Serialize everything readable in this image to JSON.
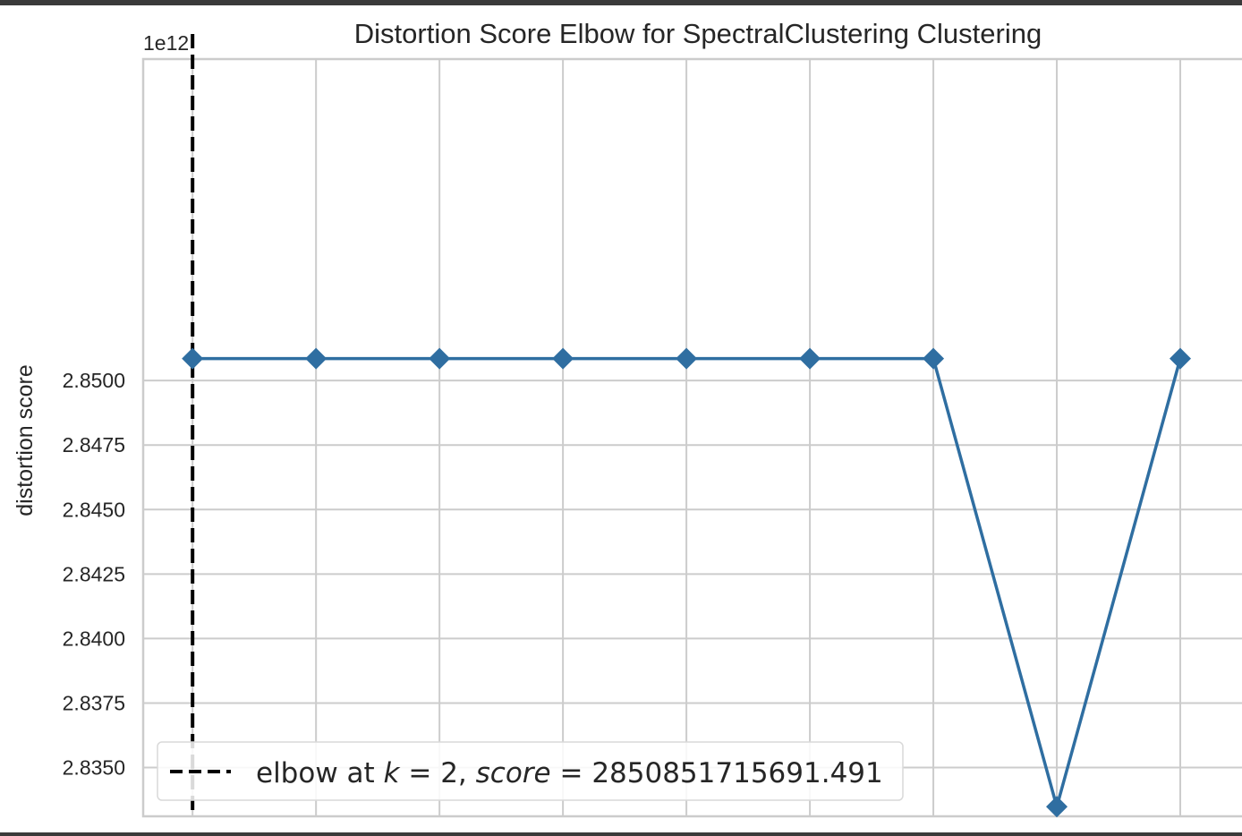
{
  "chart_data": {
    "type": "line",
    "title": "Distortion Score Elbow for SpectralClustering Clustering",
    "xlabel": "",
    "ylabel": "distortion score",
    "y_offset_label": "1e12",
    "x": [
      2,
      3,
      4,
      5,
      6,
      7,
      8,
      9,
      10
    ],
    "series": [
      {
        "values": [
          2.850851715691491,
          2.850851715691491,
          2.850851715691491,
          2.850851715691491,
          2.850851715691491,
          2.850851715691491,
          2.850851715691491,
          2.833483,
          2.850851715691491
        ],
        "color": "#2f6ea1"
      }
    ],
    "y_ticks": [
      2.835,
      2.8375,
      2.84,
      2.8425,
      2.845,
      2.8475,
      2.85
    ],
    "y_tick_labels": [
      "2.8350",
      "2.8375",
      "2.8400",
      "2.8425",
      "2.8450",
      "2.8475",
      "2.8500"
    ],
    "ylim": [
      2.83311,
      2.86246
    ],
    "xlim": [
      1.6,
      10.5
    ],
    "grid": true,
    "elbow": {
      "k": 2,
      "color": "#000000",
      "legend_prefix": "elbow at ",
      "legend_k_symbol": "k",
      "legend_equals": " = ",
      "legend_k_value": "2",
      "legend_sep": ", ",
      "legend_score_symbol": "score",
      "legend_score_value": "2850851715691.491"
    },
    "legend_position": "lower-left"
  },
  "colors": {
    "line": "#2f6ea1",
    "grid": "#cccccc",
    "axes_edge": "#cccccc",
    "elbow": "#000000"
  }
}
